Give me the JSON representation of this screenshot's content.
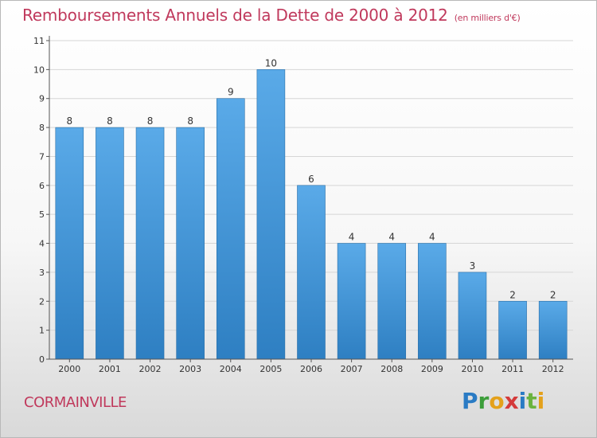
{
  "header": {
    "title": "Remboursements Annuels de la Dette de 2000 à 2012",
    "unit": "(en milliers d'€)"
  },
  "footer": {
    "city": "CORMAINVILLE",
    "brand_letters": [
      "P",
      "r",
      "o",
      "x",
      "i",
      "t",
      "i"
    ],
    "brand_colors": [
      "#2a7bc4",
      "#3c9e3a",
      "#e4a11b",
      "#d43a3a",
      "#2a7bc4",
      "#6bb33f",
      "#e4a11b"
    ]
  },
  "chart_data": {
    "type": "bar",
    "categories": [
      "2000",
      "2001",
      "2002",
      "2003",
      "2004",
      "2005",
      "2006",
      "2007",
      "2008",
      "2009",
      "2010",
      "2011",
      "2012"
    ],
    "values": [
      8,
      8,
      8,
      8,
      9,
      10,
      6,
      4,
      4,
      4,
      3,
      2,
      2
    ],
    "data_labels": [
      "8",
      "8",
      "8",
      "8",
      "9",
      "10",
      "6",
      "4",
      "4",
      "4",
      "3",
      "2",
      "2"
    ],
    "title": "Remboursements Annuels de la Dette de 2000 à 2012",
    "xlabel": "",
    "ylabel": "",
    "ylim": [
      0,
      11
    ],
    "yticks": [
      0,
      1,
      2,
      3,
      4,
      5,
      6,
      7,
      8,
      9,
      10,
      11
    ],
    "grid": true,
    "legend": "none",
    "colors": {
      "bar_light": "#5aaae8",
      "bar_dark": "#2e7fc2",
      "grid": "#d6d6d6",
      "axis": "#555555",
      "text": "#333333"
    }
  }
}
